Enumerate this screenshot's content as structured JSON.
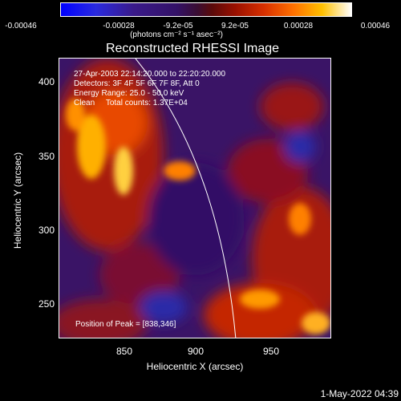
{
  "colorbar": {
    "ticks": [
      "-0.00046",
      "-0.00028",
      "-9.2e-05",
      "9.2e-05",
      "0.00028",
      "0.00046"
    ],
    "units": "(photons cm⁻² s⁻¹ asec⁻²)"
  },
  "title": "Reconstructed RHESSI Image",
  "info": {
    "time": "27-Apr-2003 22:14:20.000 to 22:20:20.000",
    "detectors": "Detectors: 3F 4F 5F 6F 7F 8F, Att 0",
    "energy": "Energy Range: 25.0 - 50.0 keV",
    "clean": "Clean     Total counts: 1.37E+04"
  },
  "peak": "Position of Peak = [838,346]",
  "axes": {
    "xlabel": "Heliocentric X (arcsec)",
    "ylabel": "Heliocentric Y (arcsec)",
    "xticks": [
      "850",
      "900",
      "950"
    ],
    "yticks": [
      "400",
      "350",
      "300",
      "250"
    ]
  },
  "datestamp": "1-May-2022 04:39"
}
